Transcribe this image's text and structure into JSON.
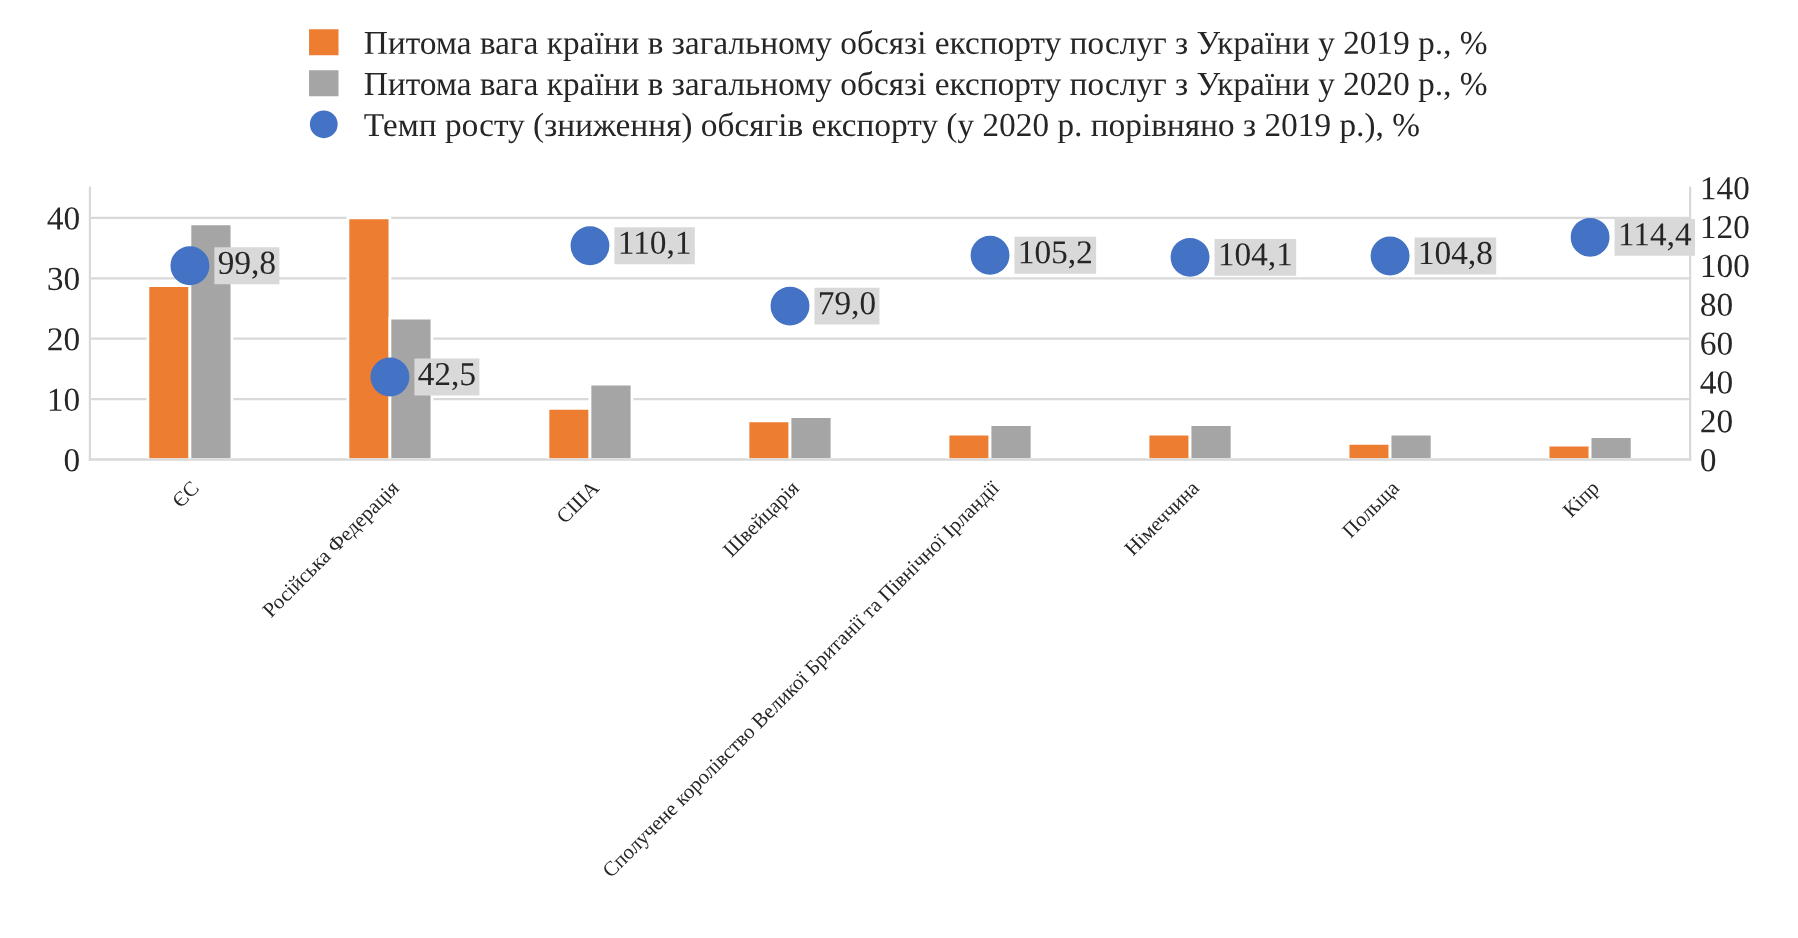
{
  "chart_data": {
    "type": "bar",
    "categories": [
      "ЄС",
      "Російська Федерація",
      "США",
      "Швейцарія",
      "Сполучене королівство Великої Британії та Північної Ірландії",
      "Німеччина",
      "Польща",
      "Кіпр"
    ],
    "series": [
      {
        "name": "Питома вага країни в загальному обсязі експорту послуг з України у 2019 р., %",
        "color": "#ed7d31",
        "values": [
          28.8,
          40.0,
          8.5,
          6.4,
          4.2,
          4.2,
          2.7,
          2.4
        ]
      },
      {
        "name": "Питома вага країни в загальному обсязі експорту послуг з України у 2020 р., %",
        "color": "#a5a5a5",
        "values": [
          39.0,
          23.4,
          12.5,
          7.1,
          5.8,
          5.8,
          4.2,
          3.8
        ]
      },
      {
        "name": "Темп росту (зниження) обсягів експорту (у 2020 р. порівняно з 2019 р.), %",
        "type": "scatter",
        "axis": "y2",
        "color": "#4472c4",
        "marker": "circle",
        "values": [
          99.8,
          42.5,
          110.1,
          79.0,
          105.2,
          104.1,
          104.8,
          114.4
        ],
        "value_labels": [
          "99,8",
          "42,5",
          "110,1",
          "79,0",
          "105,2",
          "104,1",
          "104,8",
          "114,4"
        ]
      }
    ],
    "ylim": [
      0,
      45
    ],
    "yticks": [
      0,
      10,
      20,
      30,
      40
    ],
    "y2lim": [
      0,
      140
    ],
    "y2ticks": [
      0,
      20,
      40,
      60,
      80,
      100,
      120,
      140
    ],
    "grid": "y",
    "legend": "top"
  }
}
